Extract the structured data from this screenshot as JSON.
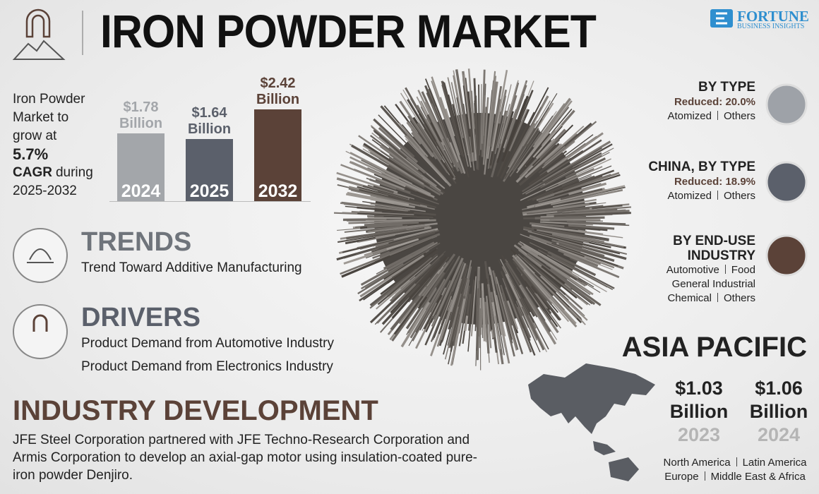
{
  "header": {
    "title": "IRON POWDER MARKET",
    "brand": "FORTUNE",
    "brand_sub": "BUSINESS INSIGHTS"
  },
  "growth": {
    "intro": "Iron Powder Market to grow at",
    "cagr": "5.7%",
    "cagr_label": "CAGR",
    "period": "during 2025-2032"
  },
  "chart_data": {
    "type": "bar",
    "categories": [
      "2024",
      "2025",
      "2032"
    ],
    "values": [
      1.78,
      1.64,
      2.42
    ],
    "value_labels": [
      "$1.78 Billion",
      "$1.64 Billion",
      "$2.42 Billion"
    ],
    "colors": [
      "#a3a6aa",
      "#5b606b",
      "#5b4238"
    ]
  },
  "trends": {
    "title": "TRENDS",
    "items": [
      "Trend Toward Additive Manufacturing"
    ]
  },
  "drivers": {
    "title": "DRIVERS",
    "items": [
      "Product Demand from Automotive Industry",
      "Product Demand from Electronics Industry"
    ]
  },
  "industry_development": {
    "title": "INDUSTRY DEVELOPMENT",
    "text": "JFE Steel Corporation partnered with JFE Techno-Research Corporation and Armis Corporation to develop an axial-gap motor using insulation-coated pure-iron powder Denjiro."
  },
  "segments": [
    {
      "title": "BY TYPE",
      "highlight": "Reduced: 20.0%",
      "rows": [
        [
          "Atomized",
          "Others"
        ]
      ]
    },
    {
      "title": "CHINA, BY TYPE",
      "highlight": "Reduced: 18.9%",
      "rows": [
        [
          "Atomized",
          "Others"
        ]
      ]
    },
    {
      "title": "BY END-USE INDUSTRY",
      "rows": [
        [
          "Automotive",
          "Food"
        ],
        [
          "General Industrial"
        ],
        [
          "Chemical",
          "Others"
        ]
      ]
    }
  ],
  "region": {
    "title": "ASIA PACIFIC",
    "figures": [
      {
        "value": "$1.03 Billion",
        "year": "2023"
      },
      {
        "value": "$1.06 Billion",
        "year": "2024"
      }
    ],
    "others": [
      [
        "North America",
        "Latin America"
      ],
      [
        "Europe",
        "Middle East & Africa"
      ]
    ]
  }
}
